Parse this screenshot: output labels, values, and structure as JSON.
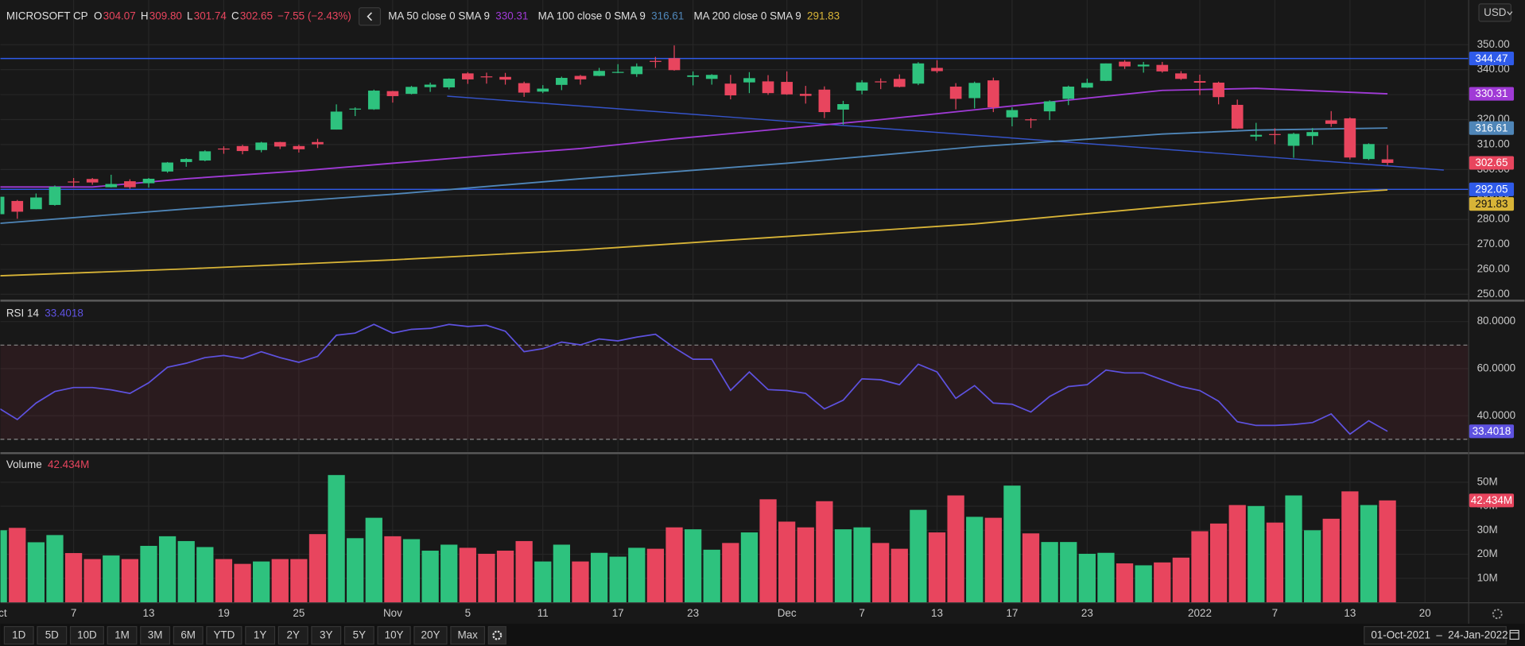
{
  "header": {
    "symbol": "MICROSOFT CP",
    "ohlc": [
      {
        "key": "O",
        "value": "304.07"
      },
      {
        "key": "H",
        "value": "309.80"
      },
      {
        "key": "L",
        "value": "301.74"
      },
      {
        "key": "C",
        "value": "302.65"
      }
    ],
    "change": "−7.55 (−2.43%)"
  },
  "currency": "USD",
  "toolbar": [
    "1D",
    "5D",
    "10D",
    "1M",
    "3M",
    "6M",
    "YTD",
    "1Y",
    "2Y",
    "3Y",
    "5Y",
    "10Y",
    "20Y",
    "Max"
  ],
  "date_range": {
    "from": "01-Oct-2021",
    "separator": "–",
    "to": "24-Jan-2022"
  },
  "chart_data": [
    {
      "type": "candlestick",
      "up_color": "#2ec27e",
      "down_color": "#e8455e",
      "xlim": [
        0.1,
        78.3
      ],
      "xticks": [
        {
          "value": 0,
          "label": "Oct"
        },
        {
          "value": 4,
          "label": "7"
        },
        {
          "value": 8,
          "label": "13"
        },
        {
          "value": 12,
          "label": "19"
        },
        {
          "value": 16,
          "label": "25"
        },
        {
          "value": 21,
          "label": "Nov"
        },
        {
          "value": 25,
          "label": "5"
        },
        {
          "value": 29,
          "label": "11"
        },
        {
          "value": 33,
          "label": "17"
        },
        {
          "value": 37,
          "label": "23"
        },
        {
          "value": 42,
          "label": "Dec"
        },
        {
          "value": 46,
          "label": "7"
        },
        {
          "value": 50,
          "label": "13"
        },
        {
          "value": 54,
          "label": "17"
        },
        {
          "value": 58,
          "label": "23"
        },
        {
          "value": 64,
          "label": "2022"
        },
        {
          "value": 68,
          "label": "7"
        },
        {
          "value": 72,
          "label": "13"
        },
        {
          "value": 76,
          "label": "20"
        }
      ],
      "ylim": [
        248.05,
        367.9
      ],
      "yticks": [
        {
          "value": 250,
          "label": "250.00"
        },
        {
          "value": 260,
          "label": "260.00"
        },
        {
          "value": 270,
          "label": "270.00"
        },
        {
          "value": 280,
          "label": "280.00"
        },
        {
          "value": 290,
          "label": "290.00"
        },
        {
          "value": 300,
          "label": "300.00"
        },
        {
          "value": 310,
          "label": "310.00"
        },
        {
          "value": 320,
          "label": "320.00"
        },
        {
          "value": 330,
          "label": "330.00"
        },
        {
          "value": 340,
          "label": "340.00"
        },
        {
          "value": 350,
          "label": "350.00"
        }
      ],
      "grid": true,
      "open": [
        282.1,
        287.4,
        284.1,
        285.8,
        295.2,
        296.2,
        292.9,
        295.3,
        294.5,
        299.2,
        303.0,
        303.6,
        308.4,
        309.4,
        307.8,
        311.0,
        309.4,
        311.0,
        316.0,
        324.3,
        324.1,
        331.4,
        330.3,
        333.0,
        332.9,
        338.5,
        337.3,
        337.1,
        334.6,
        331.2,
        333.9,
        337.5,
        337.5,
        338.9,
        338.2,
        343.5,
        344.6,
        337.1,
        336.3,
        334.4,
        334.9,
        335.3,
        335.1,
        330.3,
        332.0,
        324.0,
        331.6,
        335.3,
        336.3,
        334.4,
        340.7,
        333.2,
        328.6,
        335.7,
        320.9,
        320.1,
        323.3,
        328.3,
        332.8,
        335.5,
        343.2,
        341.3,
        341.9,
        338.5,
        335.4,
        334.8,
        325.9,
        313.2,
        314.2,
        309.5,
        313.4,
        319.7,
        320.5,
        304.2,
        304.07
      ],
      "high": [
        289.9,
        287.8,
        290.4,
        293.6,
        296.6,
        296.6,
        297.9,
        296.1,
        296.6,
        303.0,
        304.5,
        307.7,
        309.3,
        309.9,
        311.1,
        311.1,
        310.0,
        312.3,
        326.1,
        324.9,
        332.0,
        331.5,
        333.5,
        334.8,
        336.5,
        339.0,
        338.8,
        338.7,
        335.2,
        333.8,
        337.2,
        337.9,
        340.7,
        342.2,
        342.5,
        345.1,
        349.7,
        339.3,
        338.2,
        337.9,
        339.0,
        337.8,
        339.3,
        333.5,
        333.3,
        327.5,
        335.8,
        336.5,
        338.1,
        343.0,
        343.8,
        334.6,
        335.2,
        336.8,
        324.9,
        320.6,
        327.7,
        333.6,
        336.4,
        342.5,
        343.8,
        343.1,
        343.1,
        339.4,
        338.0,
        335.2,
        328.0,
        318.7,
        316.5,
        314.7,
        316.6,
        323.4,
        320.9,
        310.5,
        309.8
      ],
      "low": [
        281.3,
        280.3,
        284.1,
        285.5,
        293.0,
        293.9,
        292.8,
        292.3,
        292.8,
        298.7,
        301.1,
        303.3,
        306.3,
        306.1,
        306.9,
        308.2,
        306.8,
        308.6,
        316.0,
        321.4,
        323.9,
        326.8,
        330.1,
        331.1,
        332.1,
        334.3,
        334.4,
        334.0,
        329.1,
        330.6,
        331.8,
        334.0,
        337.4,
        338.6,
        337.1,
        340.7,
        339.6,
        333.7,
        334.0,
        328.1,
        330.6,
        329.9,
        329.9,
        326.4,
        320.6,
        318.0,
        330.1,
        332.2,
        332.9,
        333.8,
        338.7,
        324.1,
        324.5,
        323.0,
        317.3,
        316.6,
        319.8,
        325.8,
        332.7,
        335.4,
        340.3,
        338.8,
        338.8,
        335.9,
        329.8,
        326.1,
        316.3,
        311.5,
        310.1,
        304.7,
        309.9,
        317.1,
        304.0,
        303.8,
        301.74
      ],
      "close": [
        289.1,
        283.1,
        288.8,
        293.1,
        294.9,
        294.8,
        294.2,
        292.9,
        296.3,
        302.8,
        304.2,
        307.3,
        308.2,
        307.4,
        310.8,
        309.2,
        308.1,
        310.1,
        323.2,
        324.4,
        331.6,
        329.4,
        333.1,
        334.0,
        336.4,
        336.1,
        337.0,
        336.0,
        330.8,
        332.4,
        336.7,
        336.1,
        339.5,
        339.1,
        341.3,
        343.1,
        339.8,
        337.7,
        337.9,
        329.7,
        336.6,
        330.6,
        330.1,
        329.5,
        323.0,
        326.2,
        334.9,
        335.0,
        333.1,
        342.5,
        339.4,
        328.3,
        334.7,
        324.9,
        323.8,
        319.9,
        327.3,
        333.2,
        334.7,
        342.5,
        341.3,
        342.0,
        339.3,
        336.3,
        334.8,
        329.0,
        316.4,
        313.9,
        314.0,
        314.3,
        315.0,
        318.3,
        304.8,
        310.2,
        302.65
      ],
      "moving_averages": [
        {
          "name": "MA 50 close 0 SMA 9",
          "color": "#a03ad6",
          "x": [
            0,
            5,
            10,
            16,
            21,
            26,
            31,
            36,
            42,
            47,
            52,
            57,
            62,
            67,
            74
          ],
          "values": [
            293.0,
            293.0,
            296.3,
            299.4,
            302.5,
            305.6,
            308.4,
            312.3,
            316.5,
            320.0,
            323.9,
            327.8,
            331.7,
            332.5,
            330.31
          ]
        },
        {
          "name": "MA 100 close 0 SMA 9",
          "color": "#4f86b8",
          "x": [
            0,
            10,
            21,
            31,
            42,
            52,
            62,
            67,
            74
          ],
          "values": [
            278.4,
            284.2,
            290.1,
            296.3,
            302.5,
            309.1,
            314.2,
            315.8,
            316.61
          ]
        },
        {
          "name": "MA 200 close 0 SMA 9",
          "color": "#d8b437",
          "x": [
            0,
            10,
            21,
            31,
            42,
            52,
            62,
            67,
            74
          ],
          "values": [
            257.4,
            260.2,
            263.8,
            267.8,
            273.2,
            278.2,
            285.0,
            288.2,
            291.83
          ]
        }
      ],
      "hlines": [
        {
          "value": 344.47,
          "color": "#2f5bea"
        },
        {
          "value": 292.05,
          "color": "#2f5bea"
        }
      ],
      "trendline": {
        "color": "#3553c9",
        "x": [
          23.9,
          77.0
        ],
        "values": [
          329.4,
          299.8
        ]
      }
    },
    {
      "type": "line",
      "title": "RSI 14",
      "color": "#5e52e0",
      "ylim": [
        24.74,
        87.84
      ],
      "yticks": [
        {
          "value": 40,
          "label": "40.0000"
        },
        {
          "value": 60,
          "label": "60.0000"
        },
        {
          "value": 80,
          "label": "80.0000"
        }
      ],
      "levels": [
        70,
        30
      ],
      "values": [
        43.3,
        38.4,
        45.4,
        50.3,
        52.0,
        52.0,
        51.0,
        49.5,
        54.0,
        60.6,
        62.3,
        64.7,
        65.6,
        64.3,
        67.2,
        64.7,
        62.7,
        65.2,
        74.2,
        75.1,
        78.8,
        75.1,
        76.7,
        77.1,
        78.8,
        77.9,
        78.4,
        75.9,
        67.2,
        68.5,
        71.3,
        70.1,
        72.6,
        71.8,
        73.4,
        74.6,
        68.9,
        64.0,
        64.0,
        50.8,
        58.6,
        51.1,
        50.7,
        49.5,
        42.9,
        46.6,
        55.7,
        55.3,
        53.2,
        61.9,
        58.6,
        47.4,
        52.8,
        45.4,
        44.9,
        41.6,
        48.2,
        52.4,
        53.2,
        59.4,
        58.2,
        58.2,
        55.3,
        52.4,
        50.7,
        46.2,
        37.5,
        35.9,
        35.9,
        36.3,
        37.1,
        40.8,
        32.2,
        37.9,
        33.4018
      ]
    },
    {
      "type": "bar",
      "title": "Volume",
      "last_label": "42.434M",
      "ylim": [
        0,
        61.5
      ],
      "yticks": [
        {
          "value": 10,
          "label": "10M"
        },
        {
          "value": 20,
          "label": "20M"
        },
        {
          "value": 30,
          "label": "30M"
        },
        {
          "value": 40,
          "label": "40M"
        },
        {
          "value": 50,
          "label": "50M"
        }
      ],
      "values": [
        30.0,
        31.0,
        25.0,
        28.0,
        20.5,
        18.0,
        19.5,
        18.0,
        23.5,
        27.5,
        25.5,
        23.0,
        18.0,
        16.0,
        17.0,
        18.0,
        18.0,
        28.4,
        53.0,
        26.7,
        35.2,
        27.5,
        26.3,
        21.5,
        24.0,
        22.7,
        20.2,
        21.5,
        25.5,
        17.0,
        24.0,
        17.0,
        20.6,
        19.0,
        22.7,
        22.3,
        31.2,
        30.4,
        21.9,
        24.7,
        29.1,
        42.9,
        33.6,
        31.2,
        42.1,
        30.4,
        31.2,
        24.7,
        22.3,
        38.5,
        29.1,
        44.5,
        35.6,
        35.2,
        48.6,
        28.7,
        25.1,
        25.1,
        20.2,
        20.6,
        16.2,
        15.4,
        16.6,
        18.6,
        29.6,
        32.8,
        40.5,
        40.1,
        33.2,
        44.5,
        30.0,
        34.8,
        46.2,
        40.5,
        42.434
      ]
    }
  ]
}
